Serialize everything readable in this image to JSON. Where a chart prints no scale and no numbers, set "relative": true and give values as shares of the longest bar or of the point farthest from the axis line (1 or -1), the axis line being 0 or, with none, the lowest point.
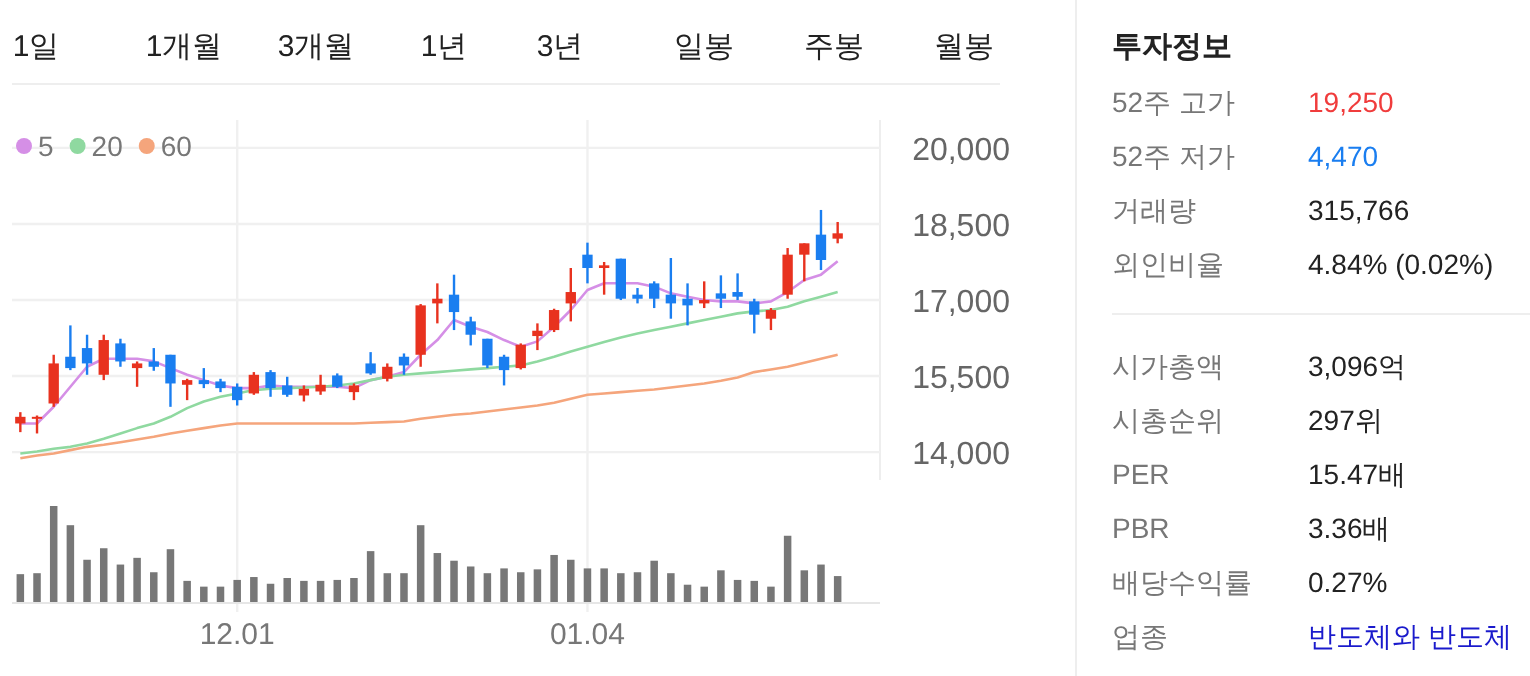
{
  "chart_data": [
    {
      "type": "candlestick",
      "legend": "top left",
      "tick_labels": "y",
      "grid": true,
      "categories": [
        null,
        null,
        null,
        null,
        null,
        null,
        null,
        null,
        null,
        null,
        null,
        null,
        null,
        null,
        null,
        null,
        null,
        null,
        null,
        null,
        null,
        null,
        null,
        null,
        null,
        null,
        null,
        null,
        null,
        null,
        null,
        null,
        null,
        null,
        null,
        null,
        null,
        null,
        null,
        null,
        null,
        null,
        null,
        null,
        null,
        null,
        null,
        null,
        null,
        null
      ],
      "ylim": [
        13450,
        20550
      ],
      "yticks": [
        {
          "value": 14000,
          "label": "14,000"
        },
        {
          "value": 15500,
          "label": "15,500"
        },
        {
          "value": 17000,
          "label": "17,000"
        },
        {
          "value": 18500,
          "label": "18,500"
        },
        {
          "value": 20000,
          "label": "20,000"
        }
      ],
      "ohlc": [
        [
          14565,
          14788,
          14394,
          14696
        ],
        [
          14657,
          14722,
          14368,
          14696
        ],
        [
          14959,
          15920,
          14893,
          15749
        ],
        [
          15881,
          16499,
          15617,
          15657
        ],
        [
          16052,
          16315,
          15525,
          15749
        ],
        [
          15525,
          16315,
          15420,
          16210
        ],
        [
          16144,
          16236,
          15683,
          15788
        ],
        [
          15657,
          15788,
          15288,
          15749
        ],
        [
          15788,
          16052,
          15604,
          15683
        ],
        [
          15920,
          15920,
          14893,
          15354
        ],
        [
          15328,
          15446,
          15025,
          15420
        ],
        [
          15420,
          15657,
          15262,
          15341
        ],
        [
          15394,
          15446,
          15183,
          15262
        ],
        [
          15288,
          15354,
          14919,
          15025
        ],
        [
          15157,
          15578,
          15130,
          15525
        ],
        [
          15578,
          15617,
          15091,
          15262
        ],
        [
          15315,
          15486,
          15091,
          15130
        ],
        [
          15117,
          15315,
          14999,
          15249
        ],
        [
          15196,
          15525,
          15130,
          15328
        ],
        [
          15512,
          15552,
          15262,
          15288
        ],
        [
          15183,
          15354,
          15025,
          15315
        ],
        [
          15749,
          15972,
          15525,
          15552
        ],
        [
          15446,
          15749,
          15394,
          15683
        ],
        [
          15881,
          15946,
          15525,
          15709
        ],
        [
          15920,
          16920,
          15683,
          16894
        ],
        [
          16933,
          17328,
          16539,
          17025
        ],
        [
          17105,
          17499,
          16407,
          16762
        ],
        [
          16578,
          16670,
          16104,
          16315
        ],
        [
          16236,
          16236,
          15657,
          15709
        ],
        [
          15881,
          15920,
          15315,
          15617
        ],
        [
          15657,
          16144,
          15630,
          16118
        ],
        [
          16289,
          16539,
          16012,
          16394
        ],
        [
          16407,
          16828,
          16368,
          16802
        ],
        [
          16933,
          17631,
          16578,
          17157
        ],
        [
          17894,
          18131,
          17328,
          17631
        ],
        [
          17631,
          17749,
          17105,
          17684
        ],
        [
          17815,
          17815,
          16999,
          17025
        ],
        [
          17105,
          17236,
          16933,
          17025
        ],
        [
          17328,
          17368,
          16841,
          17025
        ],
        [
          17105,
          17828,
          16631,
          16933
        ],
        [
          17025,
          17328,
          16499,
          16894
        ],
        [
          16933,
          17368,
          16841,
          16999
        ],
        [
          17131,
          17486,
          16841,
          17025
        ],
        [
          17157,
          17525,
          16999,
          17065
        ],
        [
          16973,
          17025,
          16341,
          16710
        ],
        [
          16631,
          16841,
          16407,
          16802
        ],
        [
          17105,
          18025,
          17025,
          17894
        ],
        [
          17894,
          18118,
          17368,
          18118
        ],
        [
          18289,
          18776,
          17591,
          17789
        ],
        [
          18210,
          18539,
          18118,
          18315
        ]
      ],
      "colors": [
        "#e8321f",
        "#e8321f",
        "#e8321f",
        "#1a7ef0",
        "#1a7ef0",
        "#e8321f",
        "#1a7ef0",
        "#e8321f",
        "#1a7ef0",
        "#1a7ef0",
        "#e8321f",
        "#1a7ef0",
        "#1a7ef0",
        "#1a7ef0",
        "#e8321f",
        "#1a7ef0",
        "#1a7ef0",
        "#e8321f",
        "#e8321f",
        "#1a7ef0",
        "#e8321f",
        "#1a7ef0",
        "#e8321f",
        "#1a7ef0",
        "#e8321f",
        "#e8321f",
        "#1a7ef0",
        "#1a7ef0",
        "#1a7ef0",
        "#1a7ef0",
        "#e8321f",
        "#e8321f",
        "#e8321f",
        "#e8321f",
        "#1a7ef0",
        "#e8321f",
        "#1a7ef0",
        "#1a7ef0",
        "#1a7ef0",
        "#1a7ef0",
        "#1a7ef0",
        "#e8321f",
        "#1a7ef0",
        "#1a7ef0",
        "#1a7ef0",
        "#e8321f",
        "#e8321f",
        "#e8321f",
        "#1a7ef0",
        "#e8321f"
      ],
      "series": [
        {
          "name": "5",
          "type": "line",
          "color": "#d58fe6",
          "values": [
            14565,
            14565,
            14894,
            15289,
            15683,
            15841,
            15841,
            15841,
            15789,
            15657,
            15526,
            15420,
            15315,
            15262,
            15262,
            15315,
            15289,
            15289,
            15289,
            15289,
            15262,
            15420,
            15486,
            15578,
            15920,
            16210,
            16605,
            16473,
            16368,
            16210,
            16078,
            16184,
            16473,
            16802,
            17197,
            17329,
            17329,
            17329,
            17263,
            17131,
            17065,
            16999,
            16973,
            16973,
            16933,
            16973,
            17157,
            17394,
            17500,
            17763
          ]
        },
        {
          "name": "20",
          "type": "line",
          "color": "#8fd9a0",
          "values": [
            13973,
            14012,
            14065,
            14104,
            14170,
            14262,
            14367,
            14473,
            14565,
            14696,
            14867,
            14999,
            15091,
            15157,
            15223,
            15249,
            15262,
            15275,
            15289,
            15315,
            15354,
            15420,
            15486,
            15526,
            15552,
            15578,
            15605,
            15631,
            15657,
            15683,
            15710,
            15789,
            15881,
            15986,
            16078,
            16170,
            16262,
            16341,
            16407,
            16473,
            16539,
            16605,
            16670,
            16736,
            16776,
            16802,
            16868,
            16973,
            17065,
            17157
          ]
        },
        {
          "name": "60",
          "type": "line",
          "color": "#f5a57c",
          "values": [
            13880,
            13933,
            13973,
            14039,
            14104,
            14144,
            14196,
            14249,
            14302,
            14367,
            14420,
            14473,
            14525,
            14565,
            14565,
            14565,
            14565,
            14565,
            14565,
            14565,
            14565,
            14578,
            14591,
            14604,
            14657,
            14696,
            14736,
            14762,
            14802,
            14841,
            14881,
            14920,
            14973,
            15052,
            15131,
            15157,
            15183,
            15210,
            15236,
            15275,
            15315,
            15354,
            15407,
            15473,
            15578,
            15631,
            15683,
            15763,
            15841,
            15920
          ]
        }
      ]
    },
    {
      "type": "bar",
      "relative": true,
      "tick_labels": "x",
      "grid": "x",
      "color": "#777777",
      "categories": [
        null,
        null,
        null,
        null,
        null,
        null,
        null,
        null,
        null,
        null,
        null,
        null,
        null,
        "12.01",
        null,
        null,
        null,
        null,
        null,
        null,
        null,
        null,
        null,
        null,
        null,
        null,
        null,
        null,
        null,
        null,
        null,
        null,
        null,
        null,
        "01.04",
        null,
        null,
        null,
        null,
        null,
        null,
        null,
        null,
        null,
        null,
        null,
        null,
        null,
        null,
        null
      ],
      "values": [
        0.29,
        0.3,
        1,
        0.8,
        0.44,
        0.56,
        0.39,
        0.46,
        0.31,
        0.55,
        0.22,
        0.16,
        0.16,
        0.23,
        0.26,
        0.19,
        0.25,
        0.22,
        0.22,
        0.23,
        0.25,
        0.53,
        0.3,
        0.3,
        0.8,
        0.51,
        0.43,
        0.37,
        0.3,
        0.35,
        0.31,
        0.34,
        0.49,
        0.44,
        0.35,
        0.35,
        0.3,
        0.31,
        0.43,
        0.3,
        0.18,
        0.16,
        0.33,
        0.23,
        0.22,
        0.16,
        0.69,
        0.33,
        0.39,
        0.27
      ]
    },
    {
      "type": "other",
      "annotations": [
        "1일",
        "1개월",
        "3개월",
        "1년",
        "3년",
        "일봉",
        "주봉",
        "월봉"
      ]
    },
    {
      "type": "other",
      "title": "투자정보",
      "categories": [
        "52주 고가",
        "52주 저가",
        "거래량",
        "외인비율",
        "시가총액",
        "시총순위",
        "PER",
        "PBR",
        "배당수익률",
        "업종"
      ],
      "value_labels": [
        "19,250",
        "4,470",
        "315,766",
        "4.84% (0.02%)",
        "3,096억",
        "297위",
        "15.47배",
        "3.36배",
        "0.27%",
        "반도체와 반도체"
      ],
      "colors": [
        "#f03c3c",
        "#1a7ef0",
        "#222222",
        "#222222",
        "#222222",
        "#222222",
        "#222222",
        "#222222",
        "#222222",
        "#1a1acc"
      ]
    }
  ]
}
